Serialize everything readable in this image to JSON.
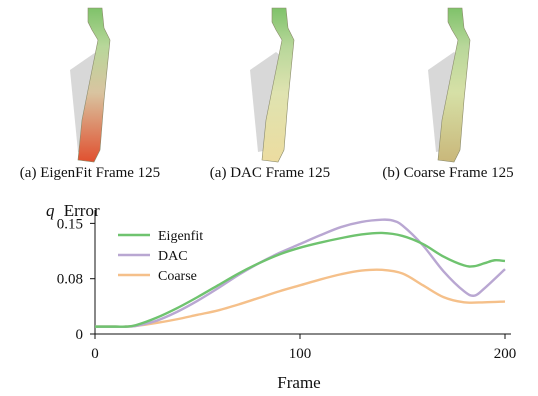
{
  "panels": [
    {
      "caption": "(a) EigenFit Frame 125",
      "tip_color": "#e0502f",
      "mid_color": "#d9c4a0"
    },
    {
      "caption": "(a) DAC Frame 125",
      "tip_color": "#ecdca0",
      "mid_color": "#dfe3b0"
    },
    {
      "caption": "(b) Coarse Frame 125",
      "tip_color": "#c9b77a",
      "mid_color": "#d6e0a6"
    }
  ],
  "chart_data": {
    "type": "line",
    "ylabel_var": "q",
    "ylabel": "Error",
    "xlabel": "Frame",
    "xlim": [
      0,
      200
    ],
    "ylim": [
      0,
      0.16
    ],
    "xticks": [
      0,
      100,
      200
    ],
    "yticks": [
      {
        "value": 0,
        "label": "0"
      },
      {
        "value": 0.075,
        "label": "0.08"
      },
      {
        "value": 0.15,
        "label": "0.15"
      }
    ],
    "grid": false,
    "legend_position": "top-left",
    "series": [
      {
        "name": "Eigenfit",
        "color": "#6fc36f",
        "x": [
          0,
          10,
          15,
          20,
          30,
          40,
          50,
          60,
          70,
          80,
          90,
          100,
          110,
          120,
          130,
          140,
          150,
          160,
          170,
          180,
          185,
          190,
          195,
          200
        ],
        "y": [
          0.01,
          0.01,
          0.01,
          0.012,
          0.022,
          0.035,
          0.05,
          0.066,
          0.082,
          0.096,
          0.108,
          0.117,
          0.124,
          0.13,
          0.135,
          0.137,
          0.133,
          0.122,
          0.105,
          0.093,
          0.092,
          0.096,
          0.1,
          0.099
        ]
      },
      {
        "name": "DAC",
        "color": "#b9a7d2",
        "x": [
          0,
          10,
          15,
          20,
          30,
          40,
          50,
          60,
          70,
          80,
          90,
          100,
          110,
          120,
          130,
          140,
          145,
          150,
          160,
          170,
          180,
          185,
          190,
          200
        ],
        "y": [
          0.01,
          0.01,
          0.01,
          0.011,
          0.018,
          0.03,
          0.045,
          0.062,
          0.08,
          0.096,
          0.11,
          0.122,
          0.134,
          0.145,
          0.152,
          0.155,
          0.154,
          0.147,
          0.12,
          0.085,
          0.058,
          0.052,
          0.062,
          0.088
        ]
      },
      {
        "name": "Coarse",
        "color": "#f5c08a",
        "x": [
          0,
          10,
          15,
          20,
          30,
          40,
          50,
          60,
          70,
          80,
          90,
          100,
          110,
          120,
          130,
          140,
          150,
          160,
          170,
          180,
          190,
          200
        ],
        "y": [
          0.01,
          0.01,
          0.01,
          0.011,
          0.015,
          0.02,
          0.026,
          0.032,
          0.04,
          0.049,
          0.058,
          0.066,
          0.074,
          0.081,
          0.086,
          0.087,
          0.082,
          0.066,
          0.05,
          0.043,
          0.043,
          0.044
        ]
      }
    ]
  }
}
